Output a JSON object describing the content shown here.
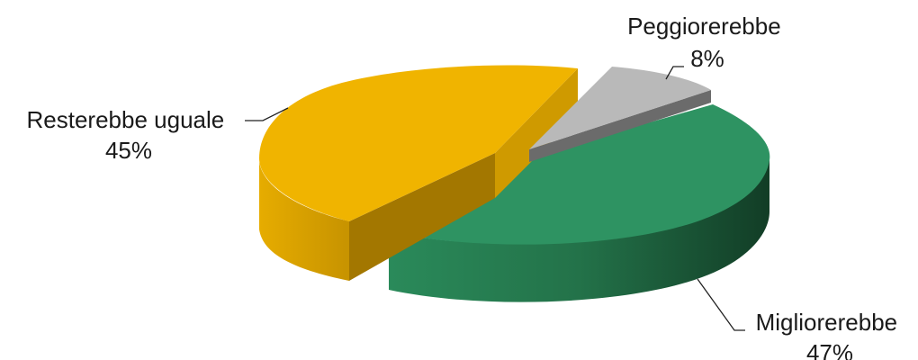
{
  "chart_data": {
    "type": "pie",
    "style": "3d-exploded",
    "title": "",
    "slices": [
      {
        "label": "Migliorerebbe",
        "value": 47,
        "value_label": "47%",
        "color": "#2e9362",
        "side_color": "#1e5a3a"
      },
      {
        "label": "Peggiorerebbe",
        "value": 8,
        "value_label": "8%",
        "color": "#b9b9b9",
        "side_color": "#6b6b6b"
      },
      {
        "label": "Resterebbe uguale",
        "value": 45,
        "value_label": "45%",
        "color": "#f0b400",
        "side_color": "#b88700"
      }
    ],
    "legend": "none"
  }
}
